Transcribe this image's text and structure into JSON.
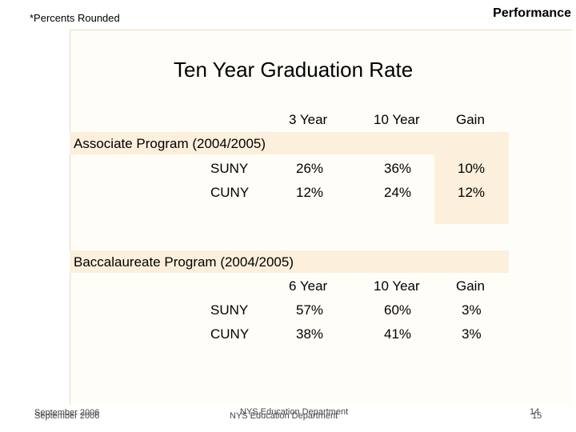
{
  "header": {
    "note": "*Percents Rounded",
    "section": "Performance"
  },
  "slide": {
    "title": "Ten Year Graduation Rate"
  },
  "associate": {
    "label": "Associate Program (2004/2005)",
    "columns": [
      "3 Year",
      "10 Year",
      "Gain"
    ],
    "rows": [
      {
        "name": "SUNY",
        "c1": "26%",
        "c2": "36%",
        "c3": "10%"
      },
      {
        "name": "CUNY",
        "c1": "12%",
        "c2": "24%",
        "c3": "12%"
      }
    ]
  },
  "baccalaureate": {
    "label": "Baccalaureate Program (2004/2005)",
    "columns": [
      "6 Year",
      "10 Year",
      "Gain"
    ],
    "rows": [
      {
        "name": "SUNY",
        "c1": "57%",
        "c2": "60%",
        "c3": "3%"
      },
      {
        "name": "CUNY",
        "c1": "38%",
        "c2": "41%",
        "c3": "3%"
      }
    ]
  },
  "footer": {
    "date_a": "September 2006",
    "date_b": "September 2006",
    "org_a": "NYS Education Department",
    "org_b": "NYS Education Department",
    "page_a": "14",
    "page_b": "15"
  },
  "colors": {
    "band": "#fcf0dc",
    "panel": "#fffdf7"
  }
}
